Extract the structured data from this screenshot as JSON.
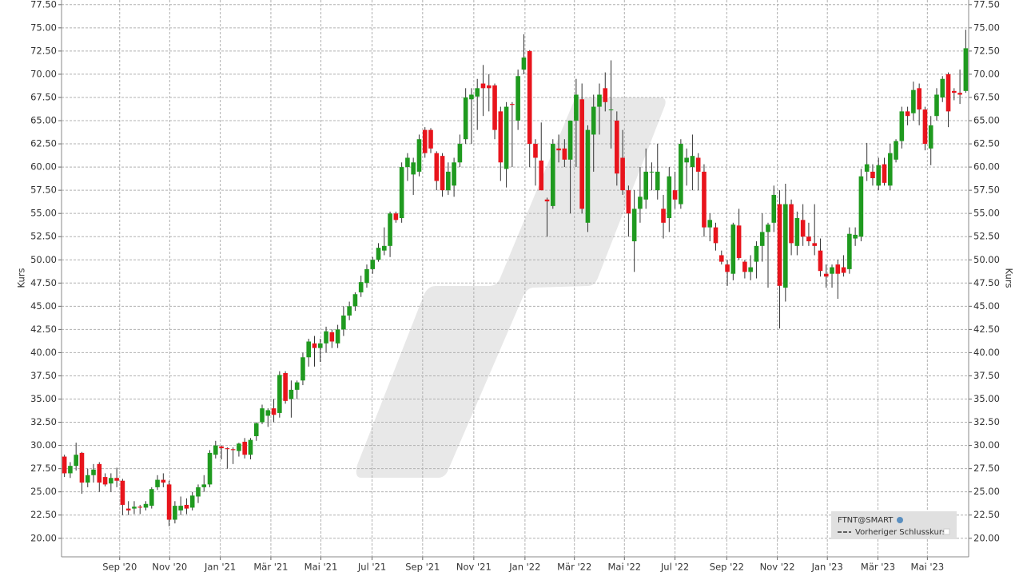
{
  "chart_data": {
    "type": "candlestick",
    "y_label": "Kurs",
    "up_color": "#1f9a1f",
    "down_color": "#e8141c",
    "grid": true,
    "legend": {
      "position": "lower right",
      "entries": [
        "Vorheriger Schlusskurs"
      ]
    },
    "series": [
      {
        "name": "FTNT@SMART",
        "open": [
          28.8,
          27.0,
          27.8,
          29.2,
          26.0,
          26.8,
          28.0,
          26.6,
          25.9,
          26.5,
          26.2,
          23.2,
          23.2,
          23.4,
          23.3,
          23.5,
          25.5,
          26.3,
          25.8,
          22.0,
          23.0,
          23.6,
          23.3,
          24.5,
          25.5,
          25.8,
          29.0,
          29.9,
          29.7,
          29.6,
          29.4,
          30.4,
          29.0,
          31.0,
          32.5,
          33.2,
          34.0,
          33.5,
          37.8,
          35.0,
          36.0,
          37.0,
          39.5,
          41.0,
          40.5,
          41.0,
          42.2,
          41.0,
          42.5,
          44.0,
          45.0,
          46.5,
          47.5,
          49.0,
          50.0,
          51.0,
          51.5,
          55.0,
          54.5,
          60.0,
          59.2,
          59.5,
          64.0,
          64.0,
          61.5,
          61.2,
          57.5,
          58.0,
          60.5,
          63.0,
          67.3,
          67.6,
          69.0,
          68.8,
          68.8,
          66.0,
          59.8,
          66.8,
          65.0,
          70.5,
          72.5,
          62.5,
          60.7,
          56.5,
          55.8,
          62.0,
          62.0,
          60.8,
          65.0,
          67.3,
          54.0,
          63.5,
          66.5,
          68.5,
          66.2,
          65.0,
          61.0,
          57.5,
          52.0,
          55.5,
          56.5,
          59.5,
          57.5,
          55.5,
          54.5,
          57.5,
          56.0,
          60.5,
          60.0,
          61.0,
          59.5,
          53.5,
          53.5,
          50.5,
          49.5,
          48.5,
          53.7,
          49.8,
          48.7,
          49.8,
          51.5,
          53.0,
          54.0,
          56.0,
          47.0,
          56.0,
          51.5,
          54.3,
          52.5,
          51.8,
          51.0,
          48.5,
          48.5,
          49.5,
          49.2,
          49.0,
          52.3,
          52.5,
          59.5,
          59.5,
          58.0,
          60.3,
          58.0,
          60.8,
          62.8,
          66.0,
          65.8,
          68.5,
          66.2,
          62.0,
          65.5,
          67.5,
          70.0,
          68.2,
          68.0,
          68.2
        ],
        "high": [
          29.0,
          28.2,
          30.3,
          29.3,
          27.5,
          28.0,
          28.2,
          27.0,
          27.0,
          27.6,
          26.4,
          24.0,
          24.0,
          23.6,
          24.0,
          25.5,
          26.8,
          27.0,
          26.2,
          24.0,
          24.5,
          24.3,
          25.0,
          25.8,
          26.8,
          29.5,
          30.5,
          30.0,
          29.8,
          29.8,
          30.3,
          30.8,
          30.8,
          32.5,
          34.4,
          34.0,
          35.0,
          38.0,
          38.0,
          37.0,
          37.0,
          40.0,
          41.5,
          41.8,
          41.5,
          42.8,
          42.5,
          43.0,
          45.0,
          45.5,
          46.5,
          48.3,
          49.5,
          50.3,
          51.8,
          53.5,
          55.2,
          55.2,
          60.5,
          61.5,
          61.0,
          63.5,
          64.3,
          64.2,
          61.7,
          61.5,
          60.5,
          61.0,
          63.5,
          68.5,
          68.5,
          69.5,
          71.0,
          70.0,
          69.0,
          66.5,
          67.0,
          67.0,
          70.5,
          74.3,
          72.6,
          63.0,
          64.8,
          56.7,
          63.0,
          63.5,
          63.0,
          65.0,
          69.5,
          69.0,
          64.5,
          67.8,
          69.0,
          70.2,
          71.5,
          66.0,
          64.0,
          58.0,
          57.5,
          60.0,
          62.0,
          60.5,
          62.5,
          57.0,
          60.0,
          59.5,
          63.0,
          62.0,
          63.5,
          61.5,
          60.3,
          55.0,
          54.0,
          51.0,
          50.0,
          54.0,
          55.5,
          50.0,
          50.5,
          52.0,
          55.0,
          54.0,
          58.0,
          57.5,
          58.2,
          56.5,
          55.2,
          56.0,
          54.0,
          56.0,
          52.3,
          49.5,
          49.5,
          50.0,
          50.5,
          53.5,
          53.5,
          59.8,
          62.6,
          60.3,
          61.0,
          61.0,
          62.5,
          63.0,
          66.5,
          66.5,
          69.2,
          69.0,
          66.5,
          65.5,
          68.5,
          69.8,
          70.2,
          68.5,
          70.5,
          74.8
        ],
        "low": [
          26.6,
          26.5,
          27.3,
          24.8,
          25.5,
          26.0,
          25.0,
          25.6,
          25.0,
          25.5,
          22.5,
          22.5,
          22.6,
          22.6,
          23.0,
          23.2,
          25.2,
          25.5,
          21.3,
          21.6,
          22.5,
          22.6,
          23.0,
          23.8,
          25.0,
          25.5,
          28.6,
          28.5,
          27.5,
          28.0,
          28.8,
          28.6,
          28.5,
          30.5,
          32.3,
          32.0,
          32.5,
          33.0,
          34.5,
          33.0,
          35.0,
          36.5,
          38.5,
          38.5,
          39.0,
          40.0,
          40.5,
          40.5,
          41.8,
          43.5,
          44.5,
          46.0,
          47.0,
          48.5,
          49.8,
          50.5,
          50.3,
          54.0,
          54.0,
          58.5,
          57.0,
          59.0,
          61.0,
          61.5,
          57.5,
          56.8,
          57.0,
          56.8,
          60.0,
          62.5,
          62.5,
          64.0,
          65.5,
          66.0,
          63.0,
          58.5,
          57.8,
          60.0,
          64.0,
          70.0,
          60.0,
          58.0,
          57.5,
          52.5,
          55.5,
          60.5,
          60.0,
          55.0,
          60.0,
          55.0,
          53.0,
          59.5,
          63.5,
          66.0,
          62.0,
          58.0,
          57.0,
          52.5,
          48.7,
          54.0,
          55.5,
          57.5,
          56.5,
          52.3,
          53.0,
          55.5,
          55.5,
          58.0,
          57.5,
          57.5,
          52.5,
          52.0,
          51.0,
          49.5,
          47.2,
          47.8,
          50.0,
          48.0,
          47.8,
          48.0,
          49.8,
          47.0,
          53.0,
          42.6,
          45.5,
          50.5,
          50.5,
          51.5,
          51.5,
          50.5,
          48.2,
          47.0,
          47.0,
          45.8,
          48.2,
          48.5,
          51.5,
          52.0,
          58.5,
          58.0,
          57.5,
          58.0,
          57.5,
          60.5,
          62.0,
          64.5,
          65.0,
          64.5,
          61.8,
          60.2,
          65.0,
          67.0,
          64.3,
          67.2,
          66.8,
          68.0
        ],
        "close": [
          27.0,
          27.8,
          29.0,
          26.0,
          26.8,
          27.4,
          26.0,
          25.8,
          26.5,
          26.2,
          23.6,
          23.0,
          23.4,
          23.3,
          23.7,
          25.3,
          26.3,
          26.0,
          22.0,
          23.5,
          23.5,
          23.2,
          24.6,
          25.5,
          25.8,
          29.2,
          30.0,
          29.7,
          29.6,
          29.5,
          30.2,
          29.0,
          30.6,
          32.4,
          34.0,
          33.8,
          33.3,
          37.6,
          34.8,
          36.0,
          36.8,
          39.5,
          41.2,
          40.5,
          41.0,
          42.3,
          41.2,
          42.5,
          44.0,
          45.0,
          46.3,
          47.6,
          49.0,
          50.0,
          51.3,
          51.5,
          55.0,
          54.3,
          60.0,
          61.0,
          60.5,
          63.0,
          61.5,
          62.0,
          58.5,
          57.5,
          59.5,
          60.5,
          62.5,
          67.5,
          67.8,
          68.5,
          68.5,
          68.5,
          64.0,
          60.5,
          66.5,
          66.7,
          69.8,
          71.8,
          62.5,
          61.0,
          57.5,
          56.3,
          62.5,
          61.8,
          60.8,
          65.0,
          67.8,
          55.5,
          64.0,
          66.5,
          67.8,
          67.0,
          66.2,
          59.3,
          57.5,
          55.0,
          55.5,
          56.8,
          59.5,
          59.5,
          59.5,
          54.0,
          59.0,
          56.5,
          62.5,
          61.0,
          61.2,
          59.5,
          53.5,
          54.3,
          51.8,
          49.8,
          48.7,
          53.8,
          50.2,
          48.7,
          49.2,
          51.5,
          53.0,
          53.8,
          57.0,
          47.2,
          56.0,
          51.8,
          54.5,
          52.5,
          52.0,
          51.5,
          48.8,
          48.2,
          49.2,
          48.5,
          48.6,
          52.8,
          52.7,
          59.0,
          60.3,
          58.8,
          60.2,
          58.3,
          61.5,
          62.8,
          66.0,
          65.5,
          68.3,
          66.2,
          62.5,
          64.5,
          67.8,
          69.5,
          66.0,
          68.0,
          67.8,
          72.8
        ]
      }
    ],
    "xlim": [
      -0.5,
      155.5
    ],
    "xticks": [
      {
        "value": 9.5,
        "label": "Sep '20"
      },
      {
        "value": 18.1,
        "label": "Nov '20"
      },
      {
        "value": 26.8,
        "label": "Jan '21"
      },
      {
        "value": 35.5,
        "label": "Mär '21"
      },
      {
        "value": 44.1,
        "label": "Mai '21"
      },
      {
        "value": 52.9,
        "label": "Jul '21"
      },
      {
        "value": 61.6,
        "label": "Sep '21"
      },
      {
        "value": 70.4,
        "label": "Nov '21"
      },
      {
        "value": 79.2,
        "label": "Jan '22"
      },
      {
        "value": 87.7,
        "label": "Mär '22"
      },
      {
        "value": 96.3,
        "label": "Mai '22"
      },
      {
        "value": 105.0,
        "label": "Jul '22"
      },
      {
        "value": 113.9,
        "label": "Sep '22"
      },
      {
        "value": 122.6,
        "label": "Nov '22"
      },
      {
        "value": 131.2,
        "label": "Jan '23"
      },
      {
        "value": 139.9,
        "label": "Mär '23"
      },
      {
        "value": 148.4,
        "label": "Mai '23"
      }
    ],
    "ylim": [
      18.0,
      78.0
    ],
    "yticks": [
      {
        "value": 20,
        "label": "20.00"
      },
      {
        "value": 22.5,
        "label": "22.50"
      },
      {
        "value": 25,
        "label": "25.00"
      },
      {
        "value": 27.5,
        "label": "27.50"
      },
      {
        "value": 30,
        "label": "30.00"
      },
      {
        "value": 32.5,
        "label": "32.50"
      },
      {
        "value": 35,
        "label": "35.00"
      },
      {
        "value": 37.5,
        "label": "37.50"
      },
      {
        "value": 40,
        "label": "40.00"
      },
      {
        "value": 42.5,
        "label": "42.50"
      },
      {
        "value": 45,
        "label": "45.00"
      },
      {
        "value": 47.5,
        "label": "47.50"
      },
      {
        "value": 50,
        "label": "50.00"
      },
      {
        "value": 52.5,
        "label": "52.50"
      },
      {
        "value": 55,
        "label": "55.00"
      },
      {
        "value": 57.5,
        "label": "57.50"
      },
      {
        "value": 60,
        "label": "60.00"
      },
      {
        "value": 62.5,
        "label": "62.50"
      },
      {
        "value": 65,
        "label": "65.00"
      },
      {
        "value": 67.5,
        "label": "67.50"
      },
      {
        "value": 70,
        "label": "70.00"
      },
      {
        "value": 72.5,
        "label": "72.50"
      },
      {
        "value": 75,
        "label": "75.00"
      },
      {
        "value": 77.5,
        "label": "77.50"
      }
    ]
  }
}
